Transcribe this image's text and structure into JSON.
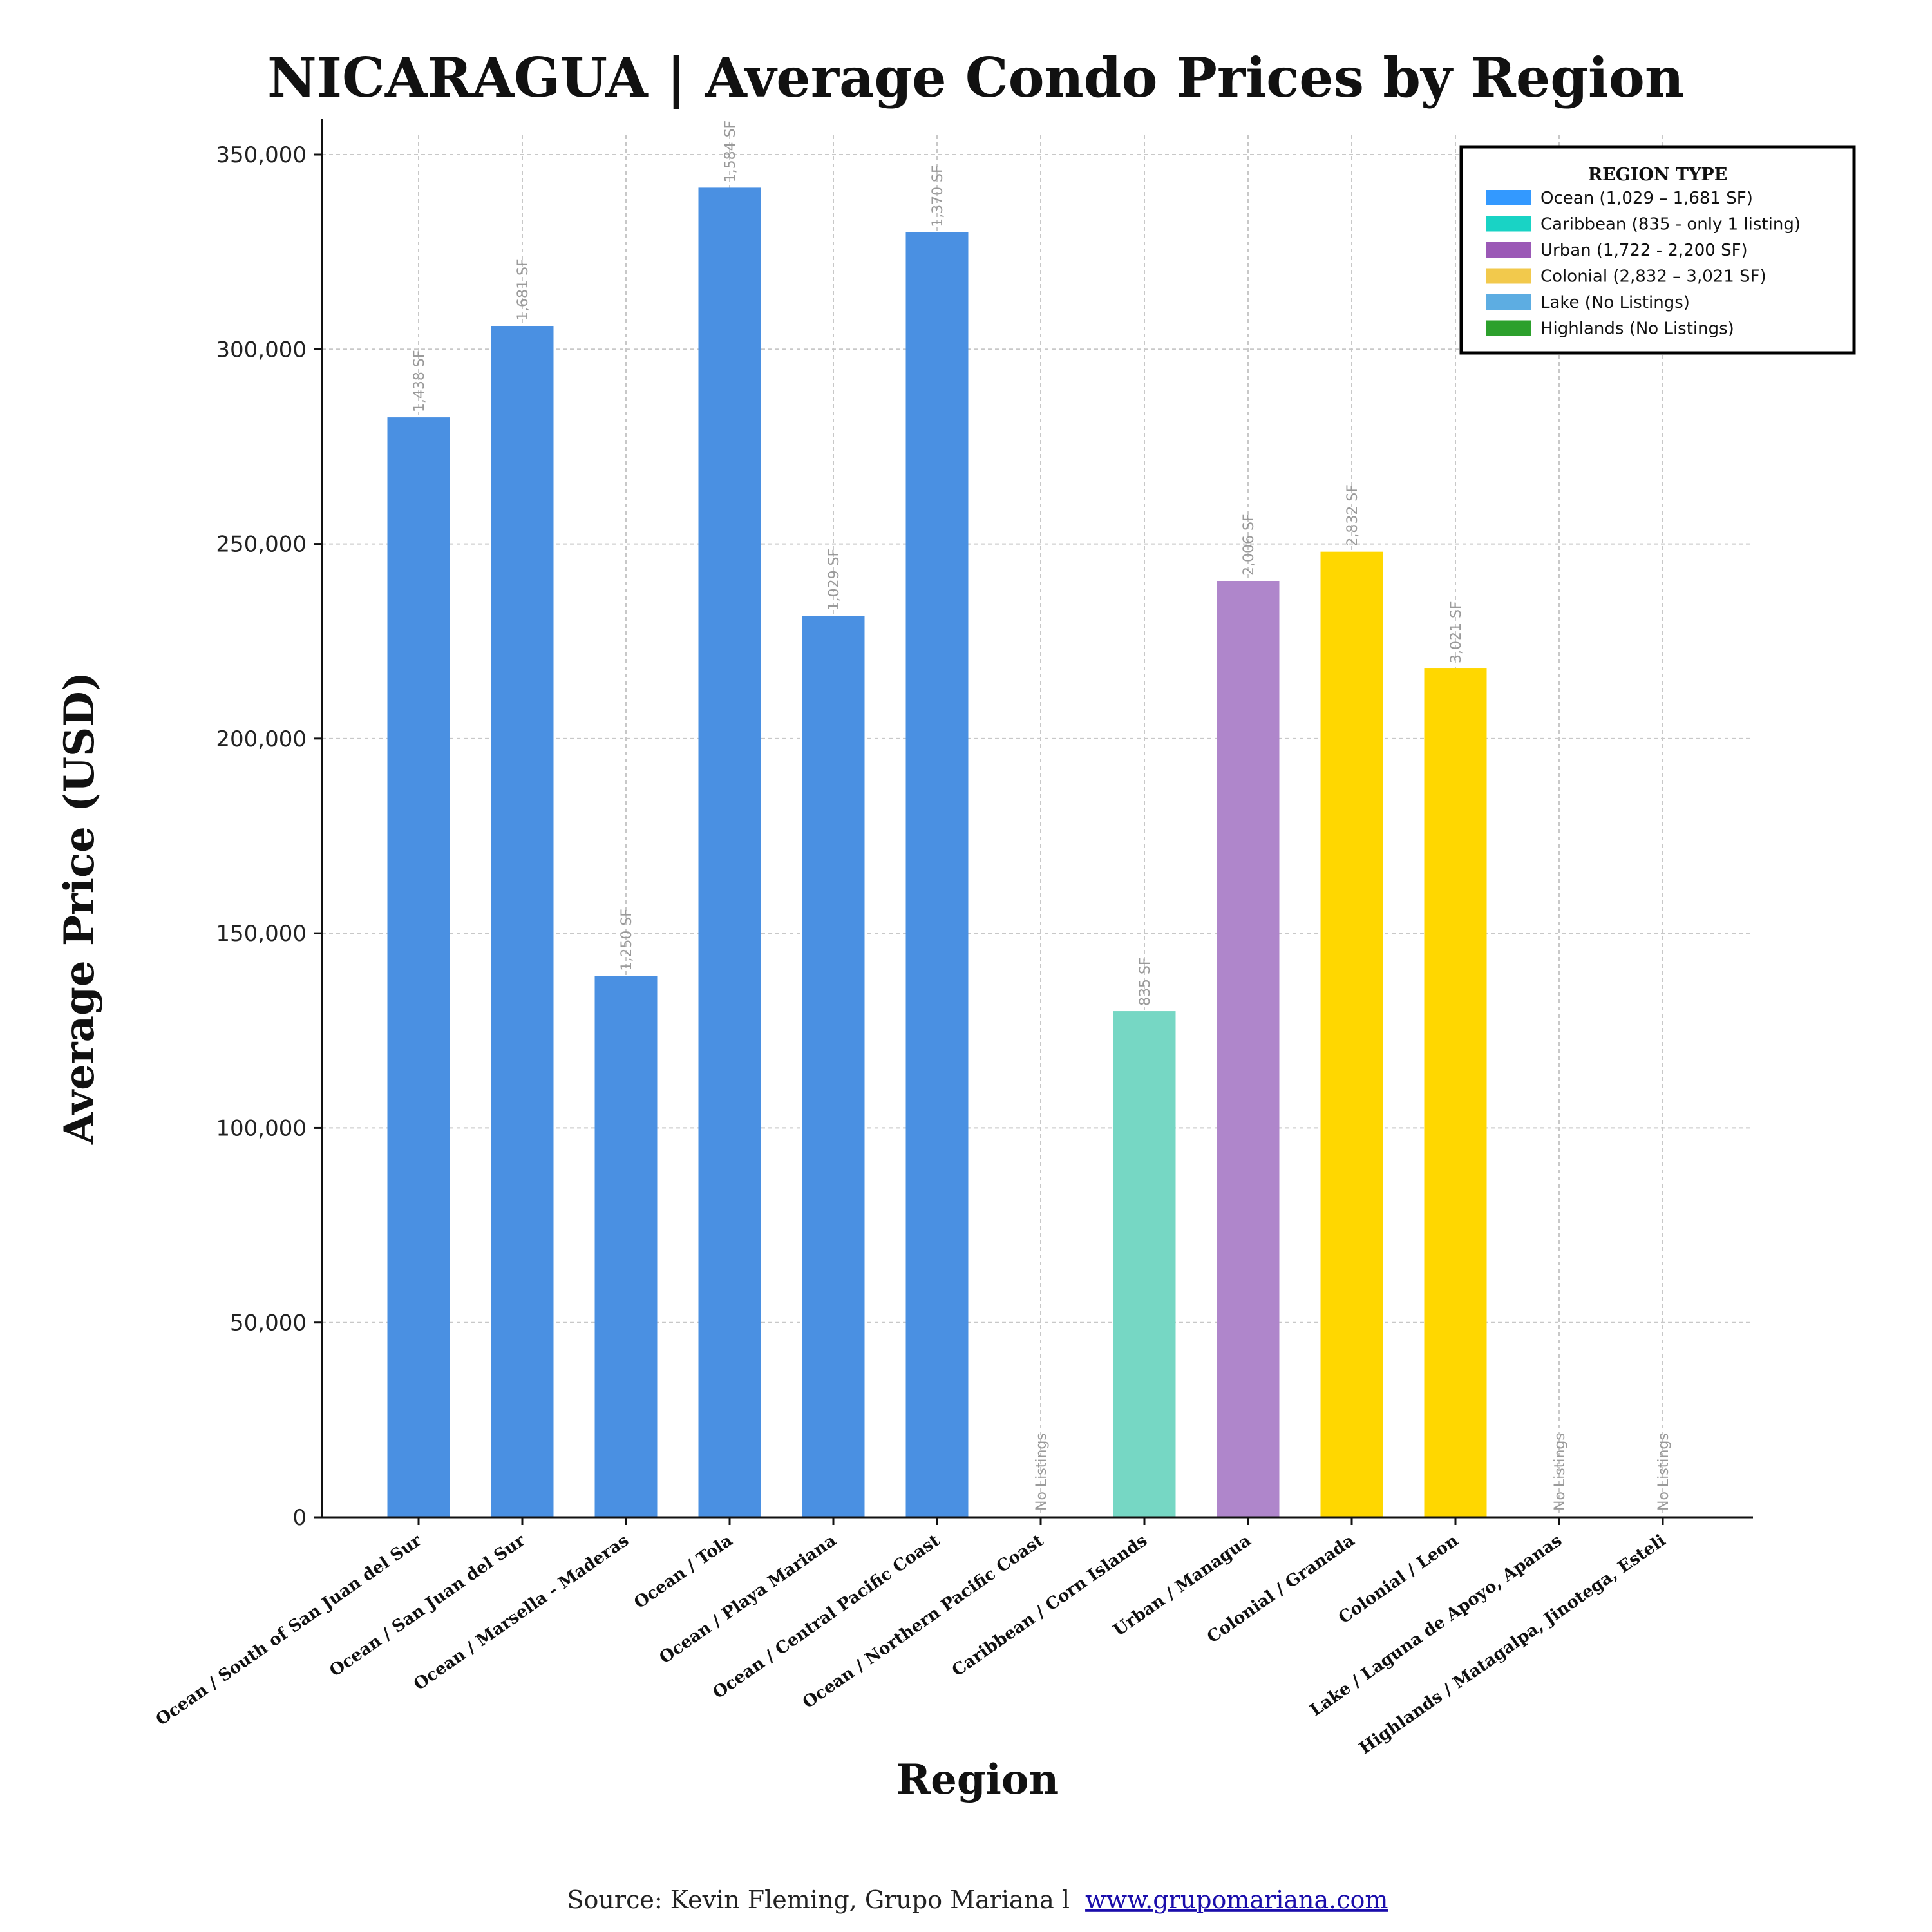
{
  "chart_data": {
    "type": "bar",
    "title": "NICARAGUA | Average Condo Prices by Region",
    "xlabel": "Region",
    "ylabel": "Average Price (USD)",
    "ylim": [
      0,
      360000
    ],
    "yticks": [
      0,
      50000,
      100000,
      150000,
      200000,
      250000,
      300000,
      350000
    ],
    "ytick_labels": [
      "0",
      "50,000",
      "100,000",
      "150,000",
      "200,000",
      "250,000",
      "300,000",
      "350,000"
    ],
    "grid": true,
    "legend_position": "top-right",
    "categories": [
      "Ocean / South of San Juan del Sur",
      "Ocean / San Juan del Sur",
      "Ocean / Marsella - Maderas",
      "Ocean / Tola",
      "Ocean / Playa Mariana",
      "Ocean / Central Pacific Coast",
      "Ocean / Northern Pacific Coast",
      "Caribbean  / Corn Islands",
      "Urban  / Managua",
      "Colonial  / Granada",
      "Colonial  / Leon",
      "Lake  / Laguna de Apoyo, Apanas",
      "Highlands  / Matagalpa, Jinotega, Esteli"
    ],
    "values": [
      282500,
      306000,
      139000,
      341500,
      231500,
      330000,
      null,
      130000,
      240500,
      248000,
      218000,
      null,
      null
    ],
    "bar_labels": [
      "1,438 SF",
      "1,681 SF",
      "1,250 SF",
      "1,584 SF",
      "1,029 SF",
      "1,370 SF",
      "No Listings",
      "835 SF",
      "2,006 SF",
      "2,832 SF",
      "3,021 SF",
      "No Listings",
      "No Listings"
    ],
    "bar_colors": [
      "#4a90e2",
      "#4a90e2",
      "#4a90e2",
      "#4a90e2",
      "#4a90e2",
      "#4a90e2",
      "#4a90e2",
      "#76d7c4",
      "#af86cb",
      "#ffd700",
      "#ffd700",
      "#5dade2",
      "#2ca02c"
    ],
    "legend": {
      "title": "REGION TYPE",
      "entries": [
        {
          "label": "Ocean (1,029 – 1,681 SF)",
          "color": "#3399ff"
        },
        {
          "label": "Caribbean (835 - only 1 listing)",
          "color": "#19d3c5"
        },
        {
          "label": "Urban (1,722 - 2,200 SF)",
          "color": "#9b59b6"
        },
        {
          "label": "Colonial (2,832 – 3,021 SF)",
          "color": "#f2c94c"
        },
        {
          "label": "Lake (No Listings)",
          "color": "#5dade2"
        },
        {
          "label": "Highlands (No Listings)",
          "color": "#2ca02c"
        }
      ]
    }
  },
  "footer": {
    "source_text": "Source: Kevin Fleming, Grupo Mariana l",
    "link_text": "www.grupomariana.com"
  }
}
